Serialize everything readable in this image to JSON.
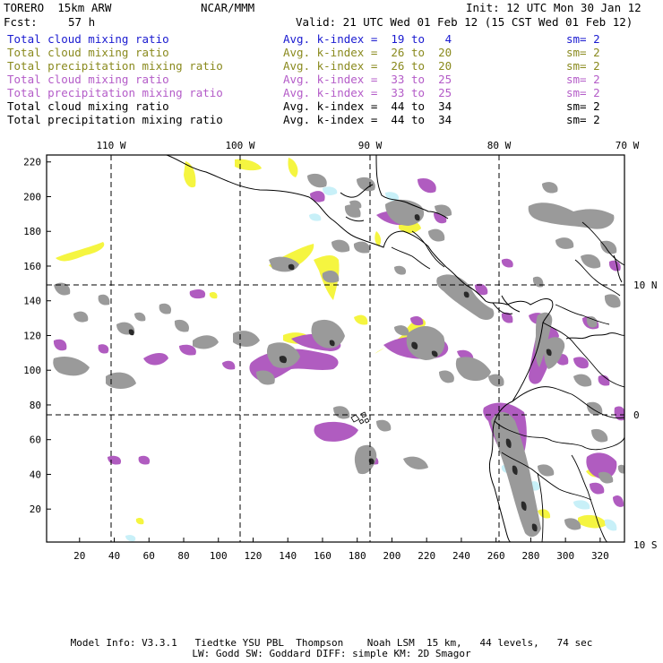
{
  "header": {
    "model": "TORERO  15km ARW",
    "org": "NCAR/MMM",
    "init": "Init: 12 UTC Mon 30 Jan 12",
    "fcst_label": "Fcst:",
    "fcst_value": "57 h",
    "valid": "Valid: 21 UTC Wed 01 Feb 12 (15 CST Wed 01 Feb 12)"
  },
  "legend": [
    {
      "field": "Total cloud mixing ratio",
      "range": "Avg. k-index =  19 to   4",
      "sm": "sm= 2",
      "color": "#1a1ad0"
    },
    {
      "field": "Total cloud mixing ratio",
      "range": "Avg. k-index =  26 to  20",
      "sm": "sm= 2",
      "color": "#8a8a1e"
    },
    {
      "field": "Total precipitation mixing ratio",
      "range": "Avg. k-index =  26 to  20",
      "sm": "sm= 2",
      "color": "#8a8a1e"
    },
    {
      "field": "Total cloud mixing ratio",
      "range": "Avg. k-index =  33 to  25",
      "sm": "sm= 2",
      "color": "#b45cc8"
    },
    {
      "field": "Total precipitation mixing ratio",
      "range": "Avg. k-index =  33 to  25",
      "sm": "sm= 2",
      "color": "#b45cc8"
    },
    {
      "field": "Total cloud mixing ratio",
      "range": "Avg. k-index =  44 to  34",
      "sm": "sm= 2",
      "color": "#000000"
    },
    {
      "field": "Total precipitation mixing ratio",
      "range": "Avg. k-index =  44 to  34",
      "sm": "sm= 2",
      "color": "#000000"
    }
  ],
  "map": {
    "grid_x_ticks": [
      "20",
      "40",
      "60",
      "80",
      "100",
      "120",
      "140",
      "160",
      "180",
      "200",
      "220",
      "240",
      "260",
      "280",
      "300",
      "320"
    ],
    "grid_y_ticks": [
      "20",
      "40",
      "60",
      "80",
      "100",
      "120",
      "140",
      "160",
      "180",
      "200",
      "220"
    ],
    "lon_labels": [
      "110 W",
      "100 W",
      "90 W",
      "80 W",
      "70 W"
    ],
    "lat_labels": [
      "10 N",
      "0",
      "10 S"
    ],
    "x_range": [
      1,
      334
    ],
    "y_range": [
      1,
      224
    ],
    "lon_values": [
      -110,
      -100,
      -90,
      -80
    ],
    "lat_values": [
      10,
      0
    ],
    "colors": {
      "yellow": "#f5f540",
      "light_blue": "#c8f0f8",
      "violet": "#b05cc0",
      "gray": "#9a9a9a",
      "dark": "#2a2a2a"
    }
  },
  "footer": {
    "line1": "Model Info: V3.3.1   Tiedtke YSU PBL  Thompson    Noah LSM  15 km,   44 levels,   74 sec",
    "line2": "LW: Godd SW: Goddard DIFF: simple KM: 2D Smagor"
  }
}
